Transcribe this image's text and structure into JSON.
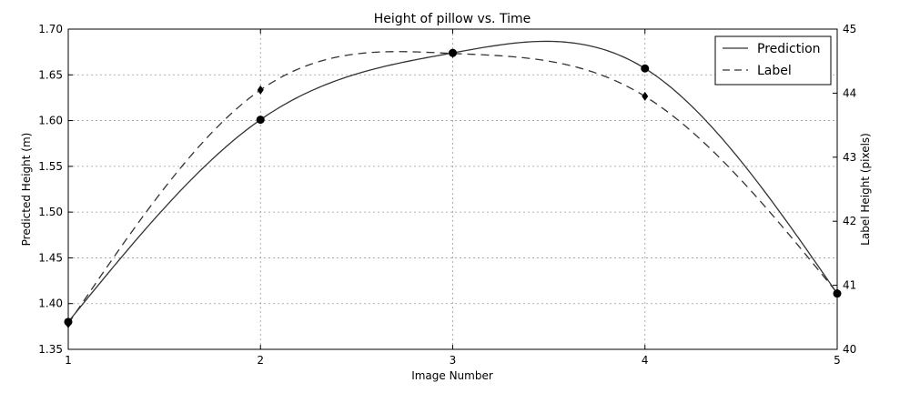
{
  "chart_data": {
    "type": "line",
    "title": "Height of pillow vs. Time",
    "xlabel": "Image Number",
    "ylabel": "Predicted Height (m)",
    "y2label": "Label Height (pixels)",
    "xlim": [
      1,
      5
    ],
    "ylim": [
      1.35,
      1.7
    ],
    "y2lim": [
      40,
      45
    ],
    "x_ticks": [
      "1",
      "2",
      "3",
      "4",
      "5"
    ],
    "y_ticks": [
      "1.35",
      "1.40",
      "1.45",
      "1.50",
      "1.55",
      "1.60",
      "1.65",
      "1.70"
    ],
    "y2_ticks": [
      "40",
      "41",
      "42",
      "43",
      "44",
      "45"
    ],
    "grid": true,
    "legend_position": "top-right",
    "series": [
      {
        "name": "Prediction",
        "axis": "left",
        "line_style": "solid",
        "marker": "circle",
        "x": [
          1,
          2,
          3,
          4,
          5
        ],
        "values": [
          1.38,
          1.601,
          1.674,
          1.657,
          1.411
        ]
      },
      {
        "name": "Label",
        "axis": "right",
        "line_style": "dashed",
        "marker": "diamond",
        "x": [
          1,
          2,
          3,
          4,
          5
        ],
        "values": [
          40.4,
          44.05,
          44.62,
          43.95,
          40.88
        ]
      }
    ]
  }
}
